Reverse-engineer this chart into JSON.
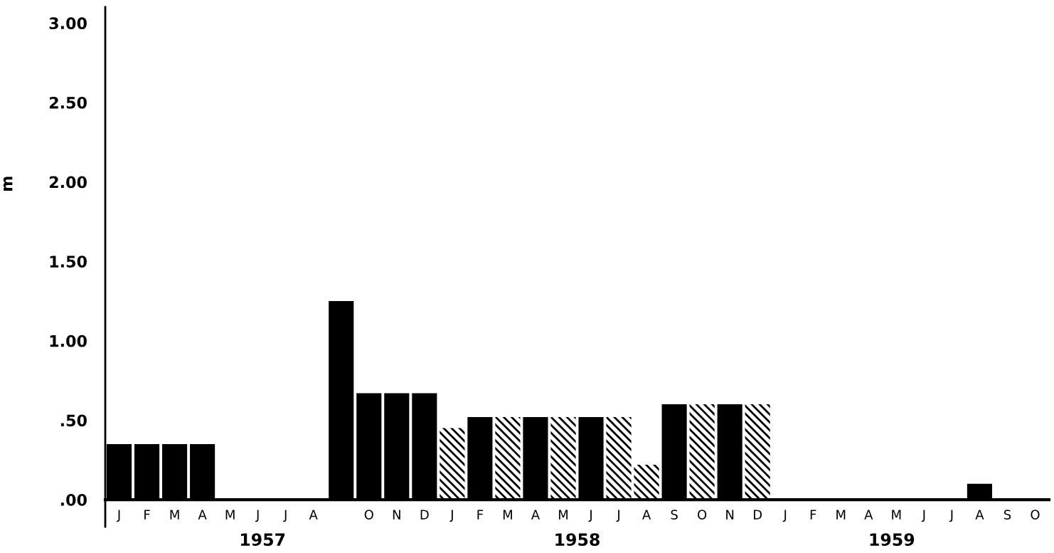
{
  "chart_data": {
    "type": "bar",
    "ylabel": "m",
    "categories": [
      "J",
      "F",
      "M",
      "A",
      "M",
      "J",
      "J",
      "A",
      null,
      "O",
      "N",
      "D",
      "J",
      "F",
      "M",
      "A",
      "M",
      "J",
      "J",
      "A",
      "S",
      "O",
      "N",
      "D",
      "J",
      "F",
      "M",
      "A",
      "M",
      "J",
      "J",
      "A",
      "S",
      "O"
    ],
    "series": [
      {
        "color": "#000000",
        "values": [
          0.35,
          0.35,
          0.35,
          0.35,
          0,
          0,
          0,
          0,
          1.25,
          0.67,
          0.67,
          0.67,
          null,
          0.52,
          null,
          0.52,
          null,
          0.52,
          null,
          null,
          0.6,
          null,
          0.6,
          null,
          0,
          0,
          0,
          0,
          0,
          0,
          0,
          0.1,
          null,
          null
        ]
      },
      {
        "color": "#000000",
        "values": [
          null,
          null,
          null,
          null,
          null,
          null,
          null,
          null,
          null,
          null,
          null,
          null,
          0.45,
          null,
          0.52,
          null,
          0.52,
          null,
          0.52,
          0.22,
          null,
          0.6,
          null,
          0.6,
          null,
          null,
          null,
          null,
          null,
          null,
          null,
          null,
          null,
          null
        ]
      }
    ],
    "annotations": [
      "1957",
      "1958",
      "1959"
    ],
    "ylim": [
      -0.17,
      3.1
    ],
    "yticks": [
      {
        "value": 0,
        "label": ".00"
      },
      {
        "value": 0.5,
        "label": ".50"
      },
      {
        "value": 1,
        "label": "1.00"
      },
      {
        "value": 1.5,
        "label": "1.50"
      },
      {
        "value": 2,
        "label": "2.00"
      },
      {
        "value": 2.5,
        "label": "2.50"
      },
      {
        "value": 3,
        "label": "3.00"
      }
    ]
  }
}
